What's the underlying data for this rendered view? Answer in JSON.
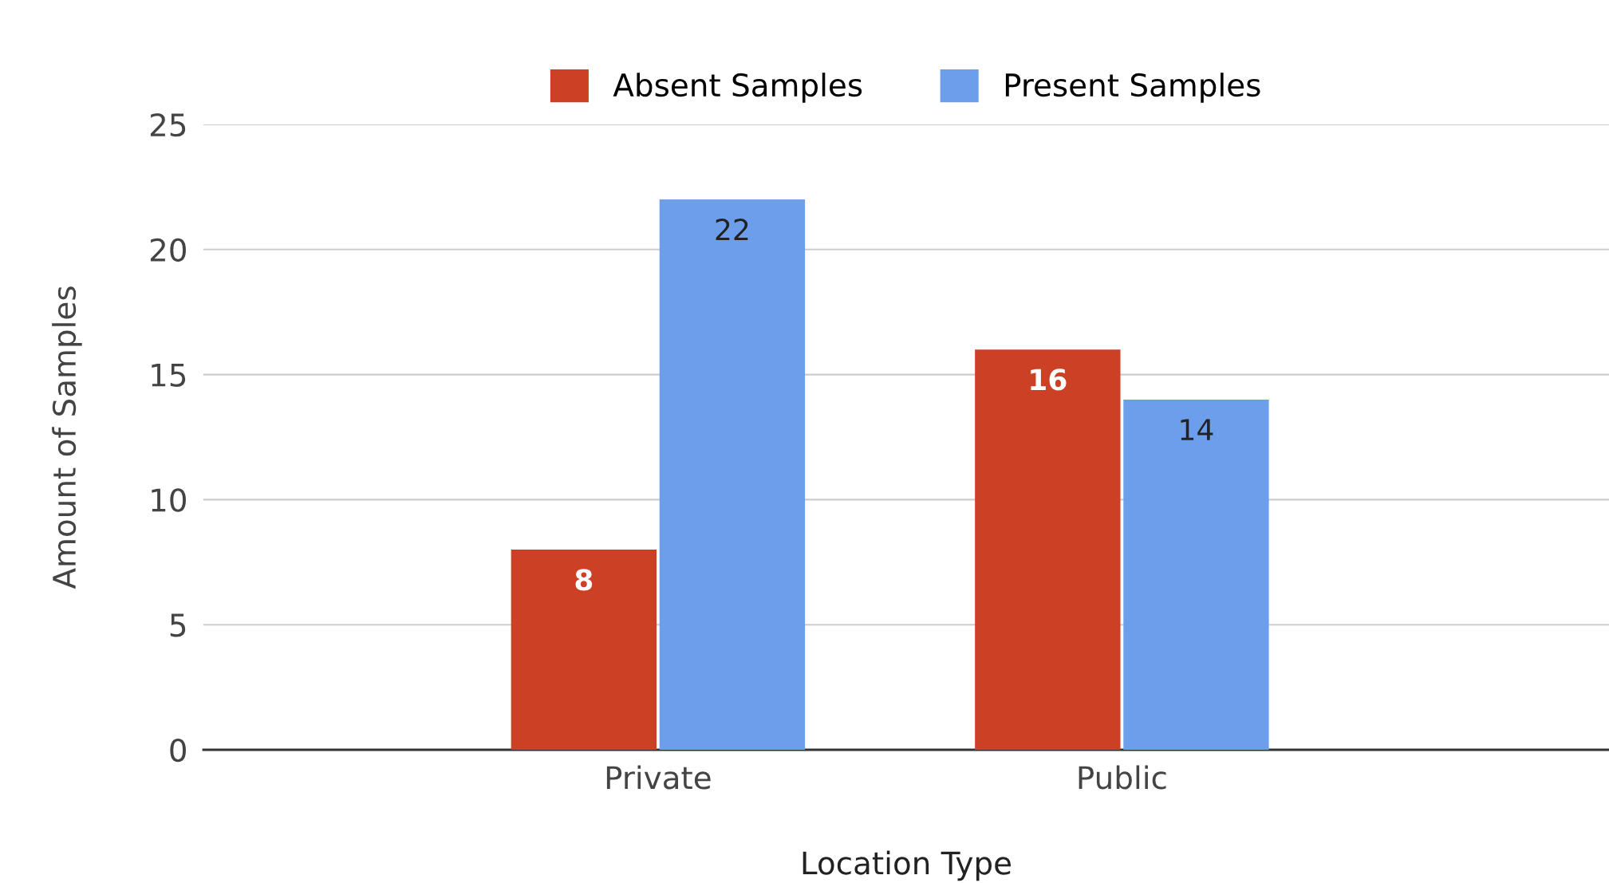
{
  "chart_data": {
    "type": "bar",
    "xlabel": "Location Type",
    "ylabel": "Amount of Samples",
    "categories": [
      "Private",
      "Public"
    ],
    "series": [
      {
        "name": "Absent Samples",
        "color": "#cc4125",
        "values": [
          8,
          16
        ]
      },
      {
        "name": "Present Samples",
        "color": "#6d9eeb",
        "values": [
          22,
          14
        ]
      }
    ],
    "ylim": [
      0,
      25
    ],
    "yticks": [
      0,
      5,
      10,
      15,
      20,
      25
    ],
    "grid": "y",
    "legend": "top",
    "data_labels": true
  }
}
